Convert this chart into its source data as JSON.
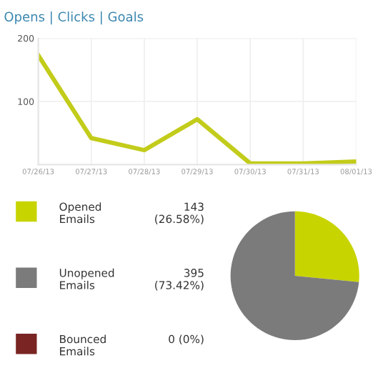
{
  "chart_data": [
    {
      "type": "line",
      "title": "Opens | Clicks | Goals",
      "categories": [
        "07/26/13",
        "07/27/13",
        "07/28/13",
        "07/29/13",
        "07/30/13",
        "07/31/13",
        "08/01/13"
      ],
      "series": [
        {
          "color": "#c2cc1a",
          "values": [
            173,
            42,
            23,
            72,
            2,
            2,
            5
          ]
        }
      ],
      "ylim": [
        0,
        200
      ],
      "yticks": [
        100,
        200
      ],
      "grid": true,
      "marker": "none",
      "line_style": "solid"
    },
    {
      "type": "pie",
      "categories": [
        "Opened Emails",
        "Unopened Emails",
        "Bounced Emails"
      ],
      "values": [
        143,
        395,
        0
      ],
      "colors": [
        "#c8d400",
        "#7b7b7b",
        "#7a2424"
      ],
      "value_labels": [
        "143 (26.58%)",
        "395 (73.42%)",
        "0 (0%)"
      ],
      "legend": "left"
    }
  ]
}
